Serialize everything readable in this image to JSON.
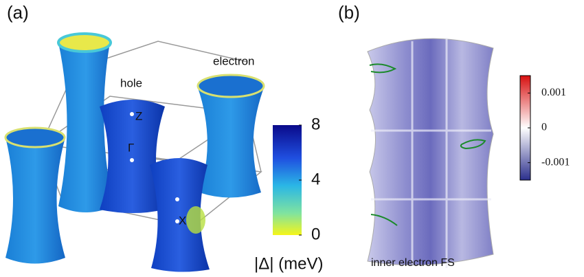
{
  "panels": [
    {
      "label": "(a)",
      "annotations": [
        "hole",
        "electron",
        "Z",
        "Γ",
        "X"
      ],
      "colorbar": {
        "label": "|Δ| (meV)",
        "lim": [
          0,
          8
        ],
        "ticks": [
          0,
          4,
          8
        ]
      }
    },
    {
      "label": "(b)",
      "caption": "inner electron FS",
      "colorbar": {
        "lim": [
          -0.0015,
          0.0015
        ],
        "ticks": [
          -0.001,
          0,
          0.001
        ]
      }
    }
  ]
}
